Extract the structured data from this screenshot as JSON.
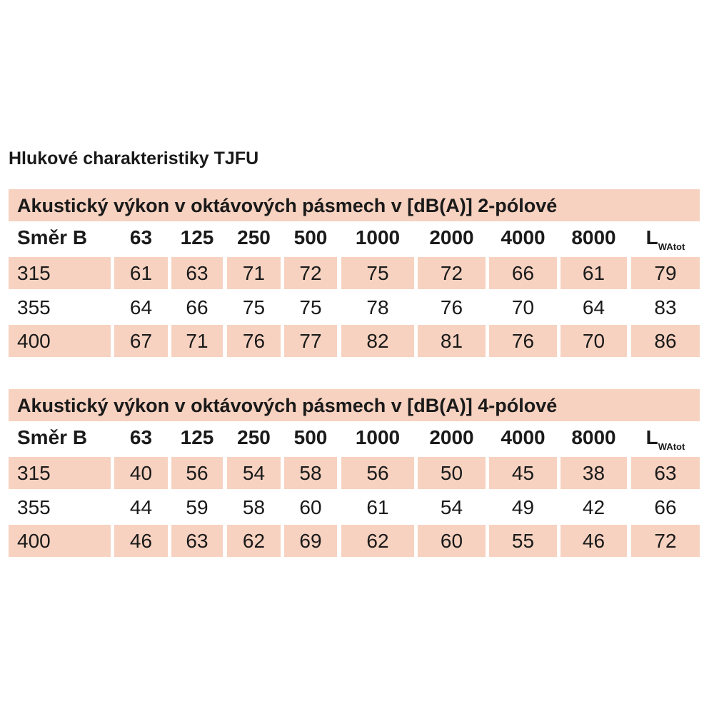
{
  "title": "Hlukové charakteristiky TJFU",
  "tables": [
    {
      "caption": "Akustický výkon v oktávových pásmech v [dB(A)] 2-pólové",
      "header": [
        "Směr B",
        63,
        125,
        250,
        500,
        1000,
        2000,
        4000,
        8000,
        {
          "main": "L",
          "sub": "WAtot"
        }
      ],
      "rows": [
        [
          315,
          61,
          63,
          71,
          72,
          75,
          72,
          66,
          61,
          79
        ],
        [
          355,
          64,
          66,
          75,
          75,
          78,
          76,
          70,
          64,
          83
        ],
        [
          400,
          67,
          71,
          76,
          77,
          82,
          81,
          76,
          70,
          86
        ]
      ]
    },
    {
      "caption": "Akustický výkon v oktávových pásmech v [dB(A)] 4-pólové",
      "header": [
        "Směr B",
        63,
        125,
        250,
        500,
        1000,
        2000,
        4000,
        8000,
        {
          "main": "L",
          "sub": "WAtot"
        }
      ],
      "rows": [
        [
          315,
          40,
          56,
          54,
          58,
          56,
          50,
          45,
          38,
          63
        ],
        [
          355,
          44,
          59,
          58,
          60,
          61,
          54,
          49,
          42,
          66
        ],
        [
          400,
          46,
          63,
          62,
          69,
          62,
          60,
          55,
          46,
          72
        ]
      ]
    }
  ]
}
